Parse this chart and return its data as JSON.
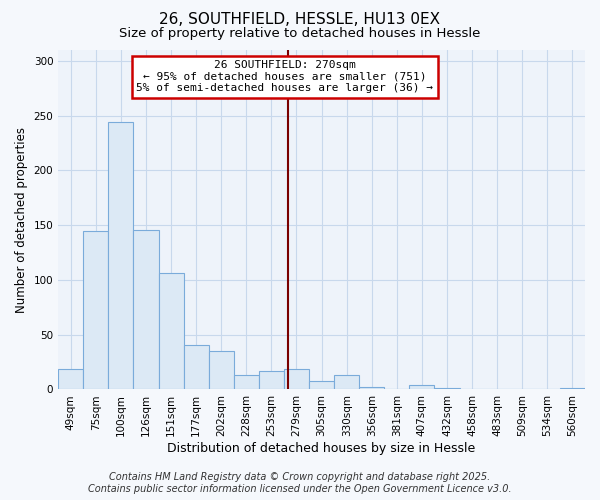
{
  "title": "26, SOUTHFIELD, HESSLE, HU13 0EX",
  "subtitle": "Size of property relative to detached houses in Hessle",
  "xlabel": "Distribution of detached houses by size in Hessle",
  "ylabel": "Number of detached properties",
  "bar_labels": [
    "49sqm",
    "75sqm",
    "100sqm",
    "126sqm",
    "151sqm",
    "177sqm",
    "202sqm",
    "228sqm",
    "253sqm",
    "279sqm",
    "305sqm",
    "330sqm",
    "356sqm",
    "381sqm",
    "407sqm",
    "432sqm",
    "458sqm",
    "483sqm",
    "509sqm",
    "534sqm",
    "560sqm"
  ],
  "bar_values": [
    19,
    145,
    244,
    146,
    106,
    41,
    35,
    13,
    17,
    19,
    8,
    13,
    2,
    0,
    4,
    1,
    0,
    0,
    0,
    0,
    1
  ],
  "bar_color": "#dce9f5",
  "bar_edge_color": "#7aabda",
  "ylim": [
    0,
    310
  ],
  "yticks": [
    0,
    50,
    100,
    150,
    200,
    250,
    300
  ],
  "vline_color": "#7a0000",
  "annotation_title": "26 SOUTHFIELD: 270sqm",
  "annotation_line1": "← 95% of detached houses are smaller (751)",
  "annotation_line2": "5% of semi-detached houses are larger (36) →",
  "annotation_box_color": "#ffffff",
  "annotation_box_edge": "#cc0000",
  "footer1": "Contains HM Land Registry data © Crown copyright and database right 2025.",
  "footer2": "Contains public sector information licensed under the Open Government Licence v3.0.",
  "plot_bg_color": "#eef3fa",
  "fig_bg_color": "#f5f8fc",
  "grid_color": "#c8d8ec",
  "title_fontsize": 11,
  "subtitle_fontsize": 9.5,
  "xlabel_fontsize": 9,
  "ylabel_fontsize": 8.5,
  "tick_fontsize": 7.5,
  "annotation_fontsize": 8,
  "footer_fontsize": 7
}
